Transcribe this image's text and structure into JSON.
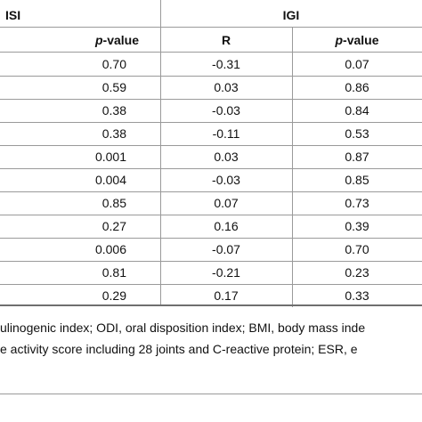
{
  "header": {
    "group_isi": "ISI",
    "group_igi": "IGI",
    "col_isi_p_italic": "p",
    "col_isi_p_rest": "-value",
    "col_igi_r": "R",
    "col_igi_p_italic": "p",
    "col_igi_p_rest": "-value"
  },
  "rows": [
    {
      "isi_p": "0.70",
      "igi_r": "-0.31",
      "igi_p": "0.07"
    },
    {
      "isi_p": "0.59",
      "igi_r": "0.03",
      "igi_p": "0.86"
    },
    {
      "isi_p": "0.38",
      "igi_r": "-0.03",
      "igi_p": "0.84"
    },
    {
      "isi_p": "0.38",
      "igi_r": "-0.11",
      "igi_p": "0.53"
    },
    {
      "isi_p": "0.001",
      "igi_r": "0.03",
      "igi_p": "0.87"
    },
    {
      "isi_p": "0.004",
      "igi_r": "-0.03",
      "igi_p": "0.85"
    },
    {
      "isi_p": "0.85",
      "igi_r": "0.07",
      "igi_p": "0.73"
    },
    {
      "isi_p": "0.27",
      "igi_r": "0.16",
      "igi_p": "0.39"
    },
    {
      "isi_p": "0.006",
      "igi_r": "-0.07",
      "igi_p": "0.70"
    },
    {
      "isi_p": "0.81",
      "igi_r": "-0.21",
      "igi_p": "0.23"
    },
    {
      "isi_p": "0.29",
      "igi_r": "0.17",
      "igi_p": "0.33"
    }
  ],
  "footnote": {
    "line1": "ulinogenic index; ODI, oral disposition index; BMI, body mass inde",
    "line2": "e activity score including 28 joints and C-reactive protein; ESR, e"
  }
}
